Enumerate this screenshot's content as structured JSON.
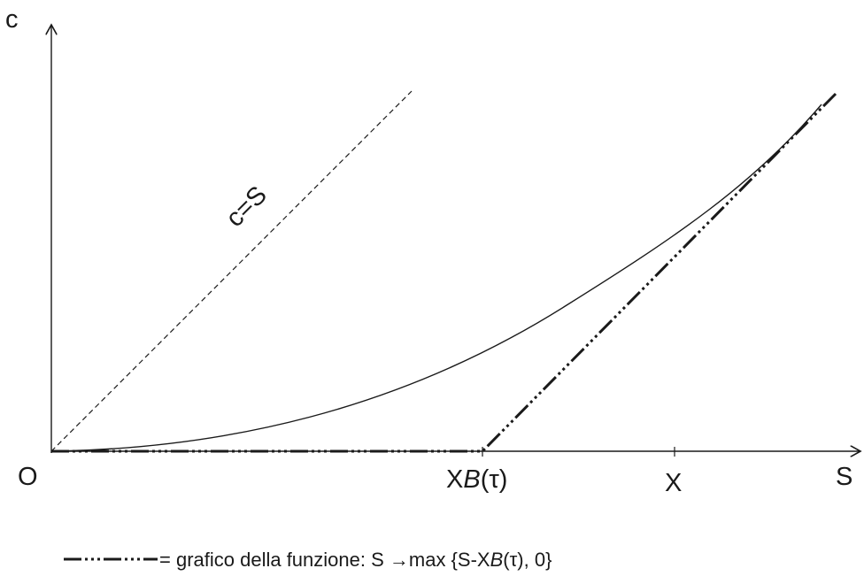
{
  "axes": {
    "y_label": "c",
    "x_label": "S",
    "origin_label": "O"
  },
  "x_ticks": {
    "xb_prefix": "X",
    "xb_func": "B",
    "xb_arg": "(τ)",
    "x_label": "X"
  },
  "line_label": "c=S",
  "legend": {
    "text_pre": "= grafico della funzione: S →max {S-X",
    "text_func": "B",
    "text_post": "(τ), 0}"
  },
  "colors": {
    "ink": "#1a1a1a",
    "background": "#ffffff"
  }
}
